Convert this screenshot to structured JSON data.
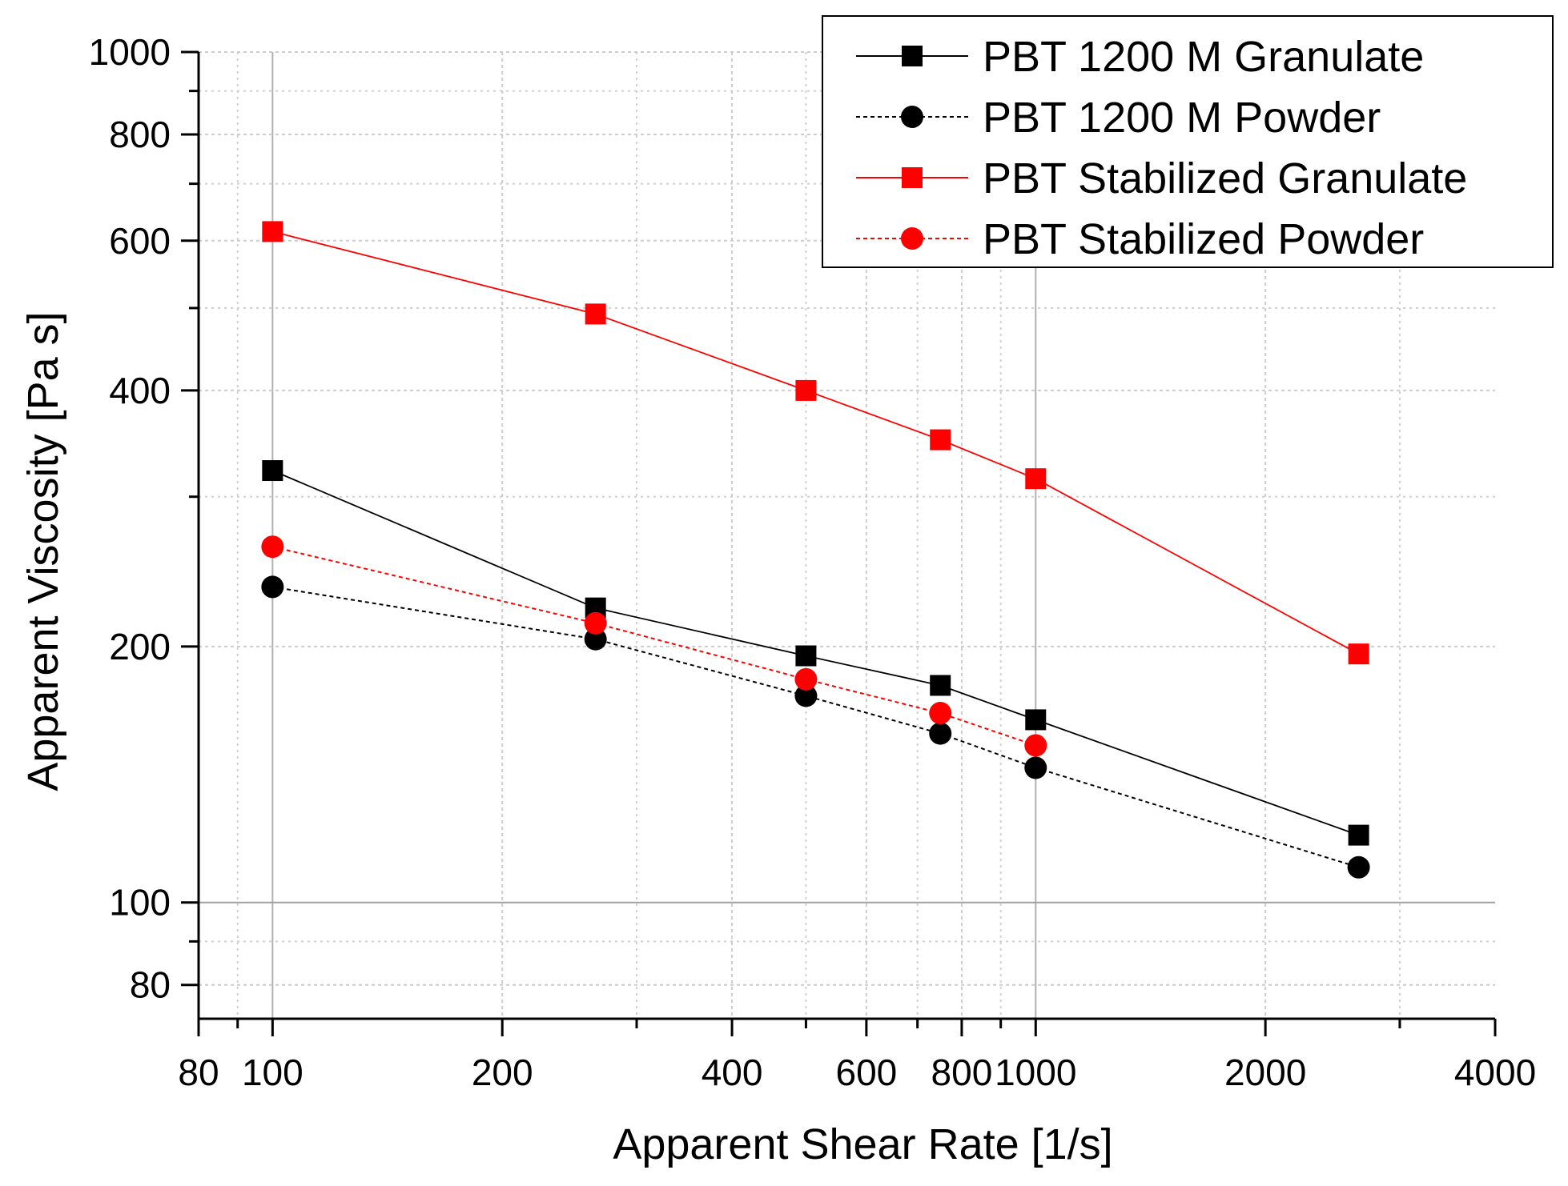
{
  "chart_data": {
    "type": "line",
    "xscale": "log",
    "yscale": "log",
    "xlabel": "Apparent Shear Rate [1/s]",
    "ylabel": "Apparent Viscosity [Pa s]",
    "xlim": [
      80,
      4000
    ],
    "ylim": [
      73,
      1000
    ],
    "x_ticks": [
      80,
      100,
      200,
      400,
      600,
      800,
      1000,
      2000,
      4000
    ],
    "x_tick_labels": [
      "80",
      "100",
      "200",
      "400",
      "600",
      "800",
      "1000",
      "2000",
      "4000"
    ],
    "y_ticks": [
      80,
      100,
      200,
      400,
      600,
      800,
      1000
    ],
    "y_tick_labels": [
      "80",
      "100",
      "200",
      "400",
      "600",
      "800",
      "1000"
    ],
    "grid": true,
    "legend_position": "top-right",
    "series": [
      {
        "name": "PBT 1200 M Granulate",
        "color": "#000000",
        "marker": "square",
        "line": "solid",
        "x": [
          100,
          265,
          500,
          750,
          1000,
          2650
        ],
        "y": [
          322,
          222,
          195,
          180,
          164,
          120
        ]
      },
      {
        "name": "PBT 1200 M Powder",
        "color": "#000000",
        "marker": "circle",
        "line": "dashed",
        "x": [
          100,
          265,
          500,
          750,
          1000,
          2650
        ],
        "y": [
          235,
          204,
          175,
          158,
          144,
          110
        ]
      },
      {
        "name": "PBT Stabilized Granulate",
        "color": "#ff0000",
        "marker": "square",
        "line": "solid",
        "x": [
          100,
          265,
          500,
          750,
          1000,
          2650
        ],
        "y": [
          615,
          492,
          400,
          350,
          315,
          196
        ]
      },
      {
        "name": "PBT Stabilized Powder",
        "color": "#ff0000",
        "marker": "circle",
        "line": "dashed",
        "x": [
          100,
          265,
          500,
          750,
          1000
        ],
        "y": [
          262,
          213,
          183,
          167,
          153
        ]
      }
    ]
  }
}
